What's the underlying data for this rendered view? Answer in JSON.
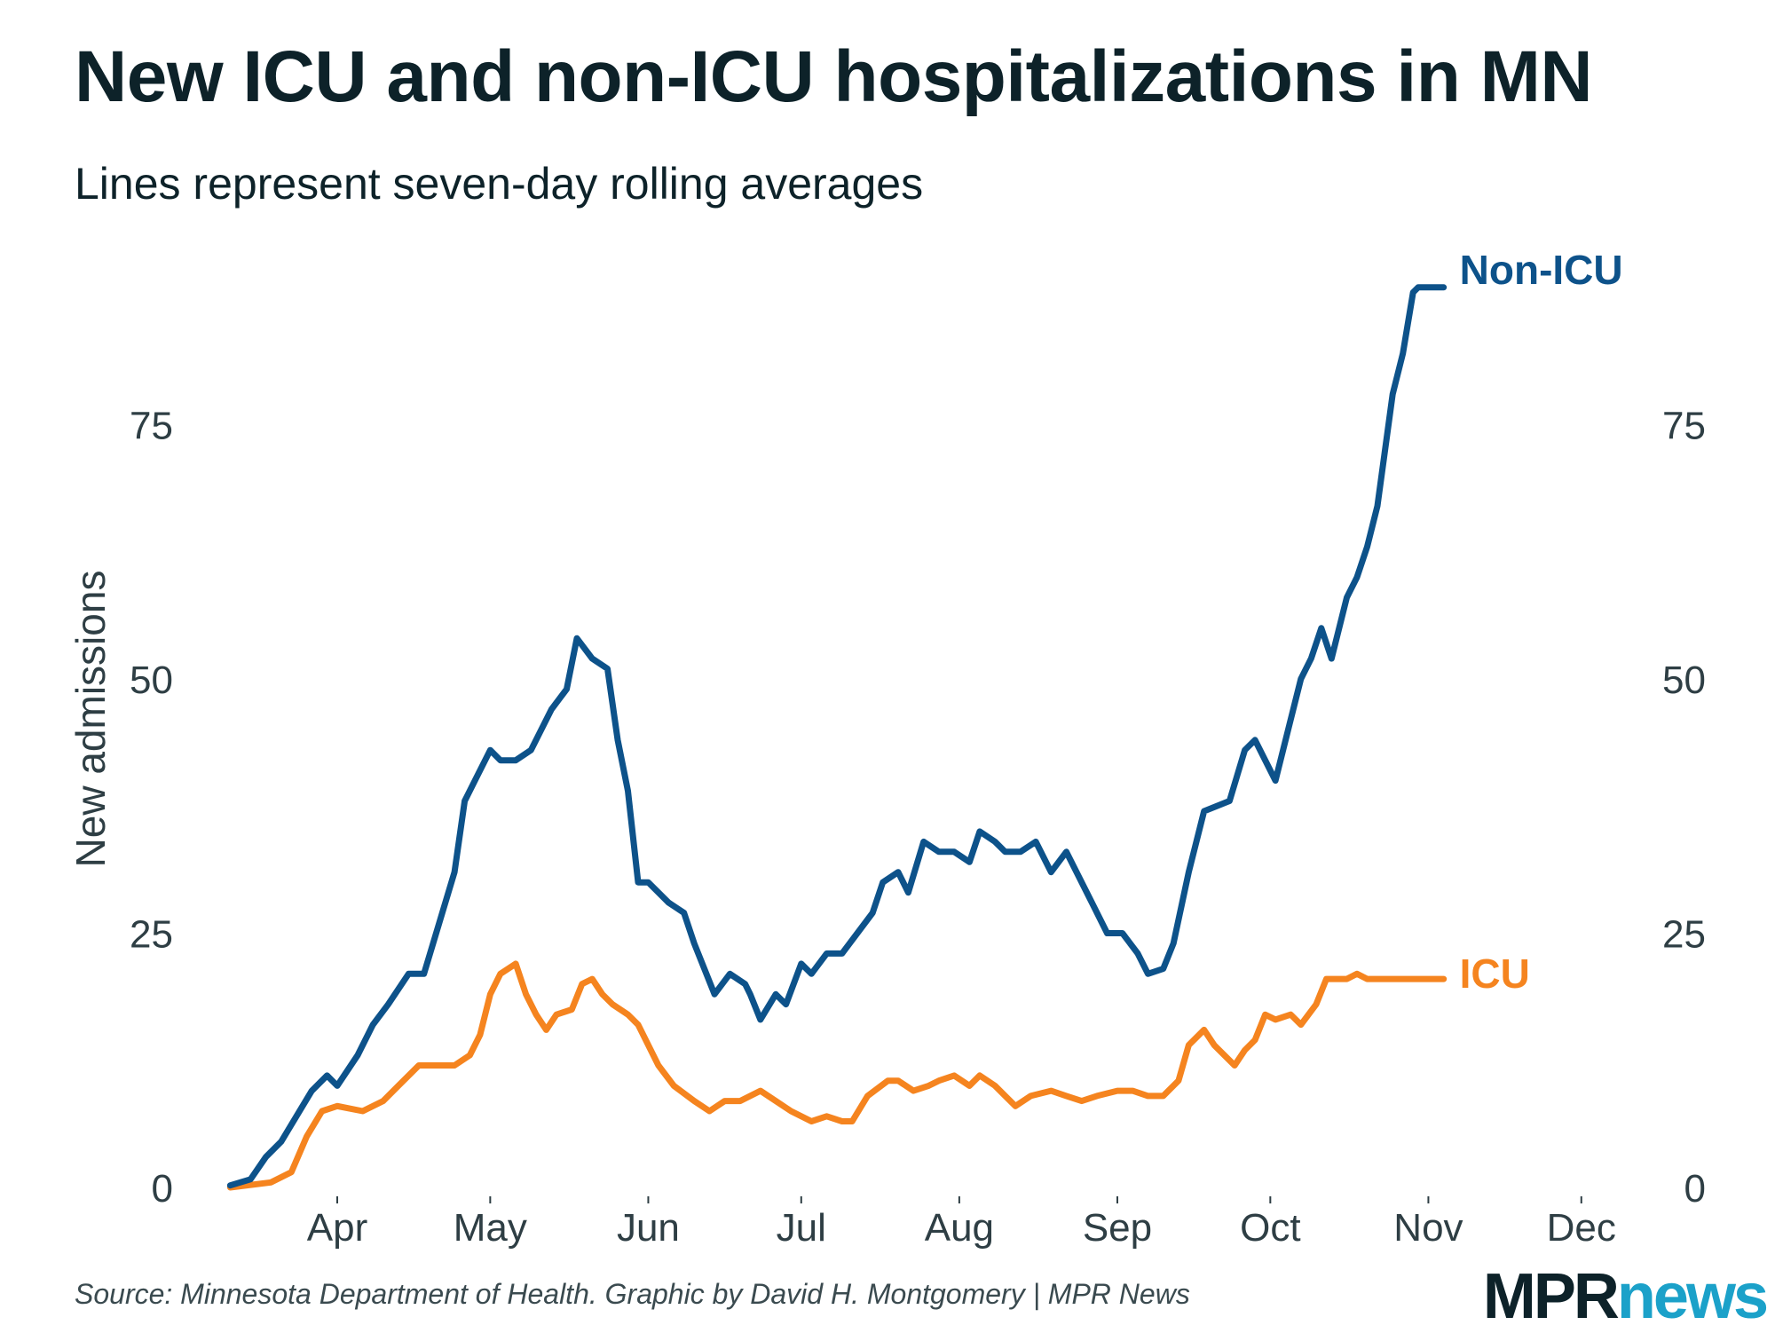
{
  "header": {
    "title": "New ICU and non-ICU hospitalizations in MN",
    "subtitle": "Lines represent seven-day rolling averages"
  },
  "footer": {
    "source": "Source: Minnesota Department of Health. Graphic by David H. Montgomery | MPR News",
    "logo_part1": "MPR",
    "logo_part2": "news"
  },
  "colors": {
    "non_icu": "#0d528a",
    "icu": "#f5841f",
    "text": "#2e3e44",
    "title": "#0d2229",
    "logo_news": "#1ba1c9"
  },
  "chart_data": {
    "type": "line",
    "title": "New ICU and non-ICU hospitalizations in MN",
    "subtitle": "Lines represent seven-day rolling averages",
    "xlabel": "",
    "ylabel": "New admissions",
    "x_unit": "days since Mar 1",
    "xlim": [
      0,
      306
    ],
    "ylim": [
      0,
      90
    ],
    "yticks": [
      0,
      25,
      50,
      75
    ],
    "ytick_labels": [
      "0",
      "25",
      "50",
      "75"
    ],
    "xticks": [
      31,
      61,
      92,
      122,
      153,
      184,
      214,
      245,
      275
    ],
    "xtick_labels": [
      "Apr",
      "May",
      "Jun",
      "Jul",
      "Aug",
      "Sep",
      "Oct",
      "Nov",
      "Dec"
    ],
    "grid": false,
    "legend": "direct labels at line ends",
    "series": [
      {
        "name": "Non-ICU",
        "label": "Non-ICU",
        "x": [
          10,
          14,
          17,
          20,
          23,
          26,
          29,
          31,
          35,
          38,
          41,
          45,
          48,
          51,
          54,
          56,
          58,
          61,
          63,
          66,
          69,
          73,
          76,
          78,
          81,
          84,
          86,
          88,
          90,
          92,
          96,
          99,
          101,
          105,
          108,
          111,
          112,
          114,
          117,
          119,
          122,
          124,
          127,
          130,
          133,
          136,
          138,
          141,
          143,
          146,
          149,
          152,
          155,
          157,
          160,
          162,
          165,
          168,
          171,
          174,
          176,
          179,
          182,
          185,
          188,
          190,
          193,
          195,
          198,
          201,
          206,
          209,
          211,
          213,
          215,
          218,
          220,
          222,
          224,
          226,
          229,
          231,
          233,
          235,
          238,
          240,
          242,
          243,
          244,
          246,
          248,
          248
        ],
        "values": [
          0.2,
          0.8,
          3,
          4.5,
          7,
          9.5,
          11,
          10,
          13,
          16,
          18,
          21,
          21,
          26,
          31,
          38,
          40,
          43,
          42,
          42,
          43,
          47,
          49,
          54,
          52,
          51,
          44,
          39,
          30,
          30,
          28,
          27,
          24,
          19,
          21,
          20,
          19,
          16.5,
          19,
          18,
          22,
          21,
          23,
          23,
          25,
          27,
          30,
          31,
          29,
          34,
          33,
          33,
          32,
          35,
          34,
          33,
          33,
          34,
          31,
          33,
          31,
          28,
          25,
          25,
          23,
          21,
          21.5,
          24,
          31,
          37,
          38,
          43,
          44,
          42,
          40,
          46,
          50,
          52,
          55,
          52,
          58,
          60,
          63,
          67,
          78,
          82,
          88,
          88.5,
          88.5,
          88.5,
          88.5,
          88.5
        ]
      },
      {
        "name": "ICU",
        "label": "ICU",
        "x": [
          10,
          18,
          22,
          25,
          28,
          31,
          36,
          40,
          43,
          47,
          50,
          54,
          57,
          59,
          61,
          63,
          66,
          68,
          70,
          72,
          74,
          77,
          79,
          81,
          83,
          85,
          88,
          90,
          94,
          97,
          101,
          104,
          107,
          110,
          114,
          117,
          120,
          124,
          127,
          130,
          132,
          135,
          139,
          141,
          144,
          147,
          149,
          152,
          155,
          157,
          160,
          162,
          164,
          167,
          171,
          174,
          177,
          180,
          184,
          187,
          190,
          193,
          196,
          198,
          201,
          203,
          207,
          209,
          211,
          213,
          215,
          218,
          220,
          223,
          225,
          227,
          229,
          231,
          233,
          235,
          238,
          240,
          242,
          244,
          246,
          248
        ],
        "values": [
          0,
          0.5,
          1.5,
          5,
          7.5,
          8,
          7.5,
          8.5,
          10,
          12,
          12,
          12,
          13,
          15,
          19,
          21,
          22,
          19,
          17,
          15.5,
          17,
          17.5,
          20,
          20.5,
          19,
          18,
          17,
          16,
          12,
          10,
          8.5,
          7.5,
          8.5,
          8.5,
          9.5,
          8.5,
          7.5,
          6.5,
          7,
          6.5,
          6.5,
          9,
          10.5,
          10.5,
          9.5,
          10,
          10.5,
          11,
          10,
          11,
          10,
          9,
          8,
          9,
          9.5,
          9,
          8.5,
          9,
          9.5,
          9.5,
          9,
          9,
          10.5,
          14,
          15.5,
          14,
          12,
          13.5,
          14.5,
          17,
          16.5,
          17,
          16,
          18,
          20.5,
          20.5,
          20.5,
          21,
          20.5,
          20.5,
          20.5,
          20.5,
          20.5,
          20.5,
          20.5,
          20.5
        ]
      }
    ]
  }
}
